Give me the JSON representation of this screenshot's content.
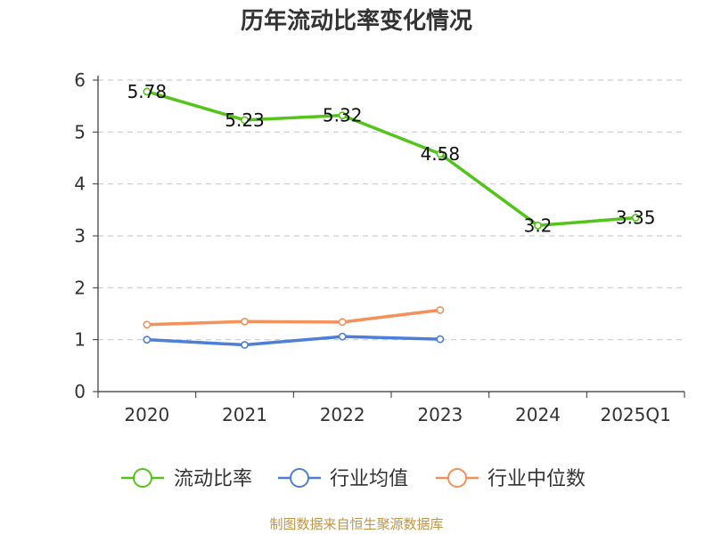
{
  "footer": "制图数据来自恒生聚源数据库",
  "chart_data": {
    "type": "line",
    "title": "历年流动比率变化情况",
    "categories": [
      "2020",
      "2021",
      "2022",
      "2023",
      "2024",
      "2025Q1"
    ],
    "ylim": [
      0,
      6
    ],
    "yticks": [
      0,
      1,
      2,
      3,
      4,
      5,
      6
    ],
    "grid": true,
    "legend_position": "bottom",
    "series": [
      {
        "name": "流动比率",
        "color": "#52c41a",
        "values": [
          5.78,
          5.23,
          5.32,
          4.58,
          3.2,
          3.35
        ],
        "data_labels": [
          "5.78",
          "5.23",
          "5.32",
          "4.58",
          "3.2",
          "3.35"
        ]
      },
      {
        "name": "行业均值",
        "color": "#4d7fd9",
        "values": [
          1.0,
          0.9,
          1.06,
          1.01,
          null,
          null
        ]
      },
      {
        "name": "行业中位数",
        "color": "#f5905a",
        "values": [
          1.29,
          1.35,
          1.34,
          1.57,
          null,
          null
        ]
      }
    ]
  }
}
